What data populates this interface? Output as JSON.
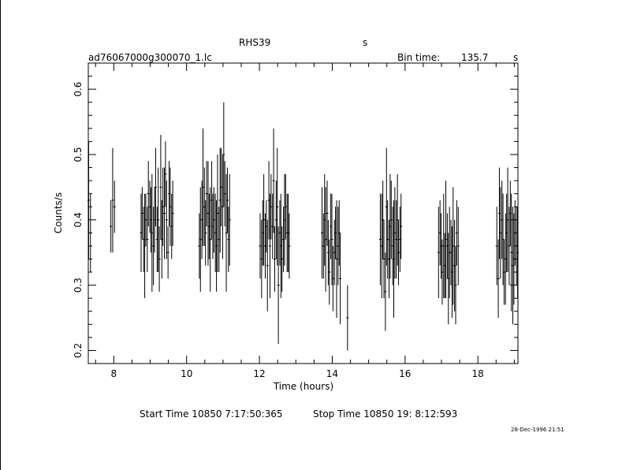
{
  "header": {
    "object": "RHS39",
    "unit_top": "s",
    "file": "ad76067000g300070_1.lc",
    "bin_label": "Bin time:",
    "bin_value": "135.7",
    "bin_unit": "s"
  },
  "footer": {
    "start": "Start Time 10850  7:17:50:365",
    "stop": "Stop Time 10850 19: 8:12:593",
    "date": "28-Dec-1996 21:51"
  },
  "chart_data": {
    "type": "scatter",
    "title": "RHS39",
    "xlabel": "Time (hours)",
    "ylabel": "Counts/s",
    "xlim": [
      7.3,
      19.1
    ],
    "ylim": [
      0.18,
      0.64
    ],
    "x_ticks": [
      8,
      10,
      12,
      14,
      16,
      18
    ],
    "y_ticks": [
      0.2,
      0.3,
      0.4,
      0.5,
      0.6
    ],
    "x_tick_labels": [
      "8",
      "10",
      "12",
      "14",
      "16",
      "18"
    ],
    "y_tick_labels": [
      "0.2",
      "0.3",
      "0.4",
      "0.5",
      "0.6"
    ],
    "grid": false,
    "points": [
      [
        7.31,
        0.43,
        0.09
      ],
      [
        7.36,
        0.38,
        0.06
      ],
      [
        7.92,
        0.39,
        0.04
      ],
      [
        7.97,
        0.43,
        0.08
      ],
      [
        8.02,
        0.42,
        0.04
      ],
      [
        8.75,
        0.38,
        0.06
      ],
      [
        8.78,
        0.41,
        0.04
      ],
      [
        8.82,
        0.37,
        0.05
      ],
      [
        8.85,
        0.36,
        0.08
      ],
      [
        8.88,
        0.4,
        0.04
      ],
      [
        8.92,
        0.37,
        0.05
      ],
      [
        8.95,
        0.44,
        0.05
      ],
      [
        8.99,
        0.42,
        0.04
      ],
      [
        9.02,
        0.4,
        0.05
      ],
      [
        9.05,
        0.38,
        0.09
      ],
      [
        9.09,
        0.36,
        0.06
      ],
      [
        9.12,
        0.4,
        0.05
      ],
      [
        9.15,
        0.45,
        0.06
      ],
      [
        9.19,
        0.37,
        0.05
      ],
      [
        9.22,
        0.4,
        0.08
      ],
      [
        9.25,
        0.34,
        0.05
      ],
      [
        9.29,
        0.45,
        0.08
      ],
      [
        9.32,
        0.37,
        0.06
      ],
      [
        9.35,
        0.42,
        0.06
      ],
      [
        9.39,
        0.41,
        0.07
      ],
      [
        9.42,
        0.47,
        0.05
      ],
      [
        9.45,
        0.4,
        0.06
      ],
      [
        9.49,
        0.35,
        0.04
      ],
      [
        9.52,
        0.44,
        0.05
      ],
      [
        9.55,
        0.42,
        0.06
      ],
      [
        9.59,
        0.39,
        0.05
      ],
      [
        9.62,
        0.41,
        0.05
      ],
      [
        10.35,
        0.36,
        0.05
      ],
      [
        10.38,
        0.37,
        0.08
      ],
      [
        10.42,
        0.4,
        0.06
      ],
      [
        10.45,
        0.45,
        0.09
      ],
      [
        10.49,
        0.42,
        0.06
      ],
      [
        10.52,
        0.38,
        0.05
      ],
      [
        10.55,
        0.44,
        0.05
      ],
      [
        10.59,
        0.41,
        0.08
      ],
      [
        10.62,
        0.39,
        0.05
      ],
      [
        10.65,
        0.37,
        0.08
      ],
      [
        10.69,
        0.43,
        0.06
      ],
      [
        10.72,
        0.39,
        0.05
      ],
      [
        10.75,
        0.4,
        0.05
      ],
      [
        10.79,
        0.38,
        0.06
      ],
      [
        10.82,
        0.36,
        0.07
      ],
      [
        10.85,
        0.41,
        0.09
      ],
      [
        10.89,
        0.37,
        0.05
      ],
      [
        10.92,
        0.43,
        0.08
      ],
      [
        10.95,
        0.45,
        0.06
      ],
      [
        10.99,
        0.42,
        0.08
      ],
      [
        11.02,
        0.5,
        0.08
      ],
      [
        11.05,
        0.44,
        0.05
      ],
      [
        11.09,
        0.38,
        0.09
      ],
      [
        11.12,
        0.43,
        0.05
      ],
      [
        11.15,
        0.37,
        0.05
      ],
      [
        11.18,
        0.4,
        0.07
      ],
      [
        12.02,
        0.36,
        0.05
      ],
      [
        12.06,
        0.34,
        0.06
      ],
      [
        12.09,
        0.38,
        0.05
      ],
      [
        12.12,
        0.4,
        0.07
      ],
      [
        12.16,
        0.36,
        0.05
      ],
      [
        12.19,
        0.39,
        0.04
      ],
      [
        12.22,
        0.33,
        0.07
      ],
      [
        12.26,
        0.43,
        0.06
      ],
      [
        12.29,
        0.36,
        0.08
      ],
      [
        12.32,
        0.42,
        0.05
      ],
      [
        12.36,
        0.39,
        0.05
      ],
      [
        12.39,
        0.46,
        0.08
      ],
      [
        12.42,
        0.34,
        0.05
      ],
      [
        12.46,
        0.4,
        0.06
      ],
      [
        12.49,
        0.42,
        0.09
      ],
      [
        12.52,
        0.3,
        0.09
      ],
      [
        12.56,
        0.38,
        0.05
      ],
      [
        12.59,
        0.36,
        0.08
      ],
      [
        12.62,
        0.34,
        0.05
      ],
      [
        12.66,
        0.37,
        0.05
      ],
      [
        12.69,
        0.4,
        0.07
      ],
      [
        12.72,
        0.42,
        0.05
      ],
      [
        12.76,
        0.38,
        0.06
      ],
      [
        12.79,
        0.38,
        0.06
      ],
      [
        12.82,
        0.36,
        0.05
      ],
      [
        13.72,
        0.38,
        0.07
      ],
      [
        13.76,
        0.36,
        0.05
      ],
      [
        13.79,
        0.4,
        0.07
      ],
      [
        13.82,
        0.37,
        0.08
      ],
      [
        13.86,
        0.41,
        0.05
      ],
      [
        13.89,
        0.35,
        0.05
      ],
      [
        13.92,
        0.32,
        0.05
      ],
      [
        13.96,
        0.39,
        0.05
      ],
      [
        13.99,
        0.37,
        0.07
      ],
      [
        14.02,
        0.31,
        0.05
      ],
      [
        14.06,
        0.35,
        0.05
      ],
      [
        14.09,
        0.38,
        0.04
      ],
      [
        14.12,
        0.34,
        0.09
      ],
      [
        14.16,
        0.36,
        0.06
      ],
      [
        14.19,
        0.38,
        0.05
      ],
      [
        14.22,
        0.31,
        0.07
      ],
      [
        14.42,
        0.25,
        0.05
      ],
      [
        15.32,
        0.37,
        0.07
      ],
      [
        15.36,
        0.36,
        0.08
      ],
      [
        15.39,
        0.4,
        0.06
      ],
      [
        15.42,
        0.34,
        0.06
      ],
      [
        15.46,
        0.29,
        0.06
      ],
      [
        15.49,
        0.42,
        0.09
      ],
      [
        15.52,
        0.37,
        0.06
      ],
      [
        15.56,
        0.34,
        0.06
      ],
      [
        15.59,
        0.39,
        0.08
      ],
      [
        15.62,
        0.4,
        0.06
      ],
      [
        15.66,
        0.36,
        0.06
      ],
      [
        15.69,
        0.34,
        0.09
      ],
      [
        15.72,
        0.38,
        0.07
      ],
      [
        15.76,
        0.37,
        0.06
      ],
      [
        15.79,
        0.4,
        0.07
      ],
      [
        15.82,
        0.35,
        0.05
      ],
      [
        15.86,
        0.37,
        0.05
      ],
      [
        15.89,
        0.39,
        0.05
      ],
      [
        16.92,
        0.35,
        0.07
      ],
      [
        16.96,
        0.38,
        0.05
      ],
      [
        16.99,
        0.36,
        0.05
      ],
      [
        17.02,
        0.32,
        0.05
      ],
      [
        17.06,
        0.36,
        0.08
      ],
      [
        17.09,
        0.33,
        0.05
      ],
      [
        17.12,
        0.37,
        0.09
      ],
      [
        17.16,
        0.36,
        0.05
      ],
      [
        17.19,
        0.31,
        0.07
      ],
      [
        17.22,
        0.35,
        0.07
      ],
      [
        17.26,
        0.35,
        0.05
      ],
      [
        17.29,
        0.32,
        0.07
      ],
      [
        17.32,
        0.36,
        0.09
      ],
      [
        17.36,
        0.33,
        0.07
      ],
      [
        17.39,
        0.3,
        0.06
      ],
      [
        17.42,
        0.38,
        0.05
      ],
      [
        17.46,
        0.36,
        0.06
      ],
      [
        18.52,
        0.36,
        0.06
      ],
      [
        18.56,
        0.31,
        0.06
      ],
      [
        18.59,
        0.41,
        0.07
      ],
      [
        18.62,
        0.38,
        0.07
      ],
      [
        18.66,
        0.4,
        0.06
      ],
      [
        18.69,
        0.37,
        0.07
      ],
      [
        18.72,
        0.32,
        0.05
      ],
      [
        18.76,
        0.34,
        0.07
      ],
      [
        18.79,
        0.38,
        0.06
      ],
      [
        18.82,
        0.4,
        0.08
      ],
      [
        18.86,
        0.36,
        0.06
      ],
      [
        18.89,
        0.41,
        0.05
      ],
      [
        18.92,
        0.35,
        0.09
      ],
      [
        18.96,
        0.33,
        0.09
      ],
      [
        18.99,
        0.34,
        0.07
      ],
      [
        19.02,
        0.38,
        0.05
      ],
      [
        19.06,
        0.36,
        0.06
      ],
      [
        19.09,
        0.35,
        0.07
      ]
    ]
  }
}
